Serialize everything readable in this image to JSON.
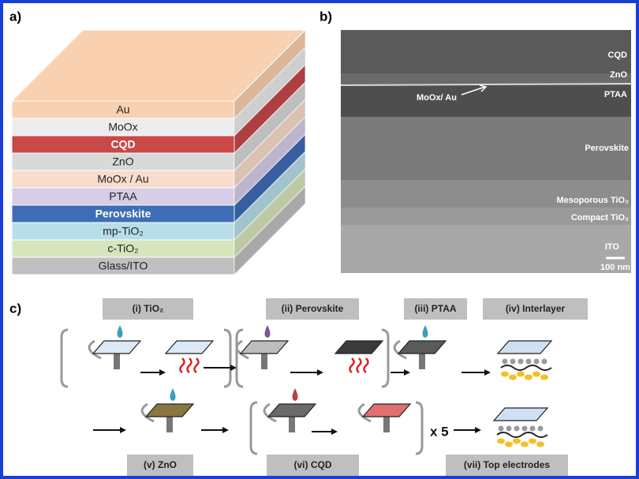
{
  "panels": {
    "a": "a)",
    "b": "b)",
    "c": "c)"
  },
  "stack": {
    "layers": [
      {
        "label": "Au",
        "color": "#f9d0b0",
        "text_color": "#222"
      },
      {
        "label": "MoOx",
        "color": "#ececec",
        "text_color": "#222"
      },
      {
        "label": "CQD",
        "color": "#c94848",
        "text_color": "#ffffff"
      },
      {
        "label": "ZnO",
        "color": "#d9d9d9",
        "text_color": "#222"
      },
      {
        "label": "MoOx / Au",
        "color": "#f9ddcc",
        "text_color": "#222"
      },
      {
        "label": "PTAA",
        "color": "#d6cde6",
        "text_color": "#222"
      },
      {
        "label": "Perovskite",
        "color": "#3d6db5",
        "text_color": "#ffffff"
      },
      {
        "label": "mp-TiO₂",
        "color": "#b8dfe9",
        "text_color": "#222"
      },
      {
        "label": "c-TiO₂",
        "color": "#d7e5bd",
        "text_color": "#222"
      },
      {
        "label": "Glass/ITO",
        "color": "#c0c0c0",
        "text_color": "#222"
      }
    ]
  },
  "sem": {
    "labels": [
      "CQD",
      "ZnO",
      "PTAA",
      "MoOx/ Au",
      "Perovskite",
      "Mesoporous TiO₂",
      "Compact TiO₂",
      "ITO"
    ],
    "scale_bar": "100 nm"
  },
  "process": {
    "steps": [
      "(i) TiO₂",
      "(ii) Perovskite",
      "(iii) PTAA",
      "(iv) Interlayer",
      "(v) ZnO",
      "(vi) CQD",
      "(vii) Top electrodes"
    ],
    "repeat": "x 5"
  }
}
